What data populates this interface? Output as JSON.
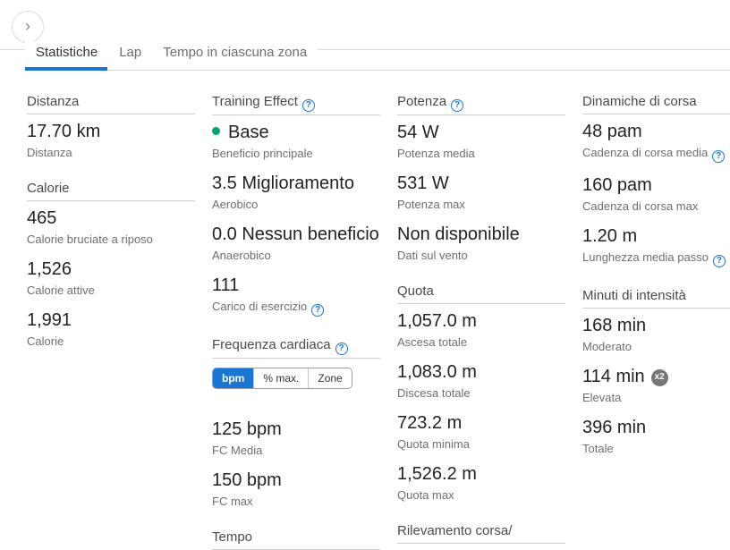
{
  "icons": {
    "expand_glyph": "›",
    "help_glyph": "?"
  },
  "colors": {
    "accent_blue": "#1976d2",
    "teal_dot": "#00a46c",
    "badge_gray": "#767676"
  },
  "tabs": [
    {
      "label": "Statistiche"
    },
    {
      "label": "Lap"
    },
    {
      "label": "Tempo in ciascuna zona"
    }
  ],
  "hr_toggle": {
    "options": [
      {
        "label": "bpm"
      },
      {
        "label": "% max."
      },
      {
        "label": "Zone"
      }
    ]
  },
  "badges": {
    "x2": "x2"
  },
  "columns": [
    {
      "sections": [
        {
          "title": "Distanza",
          "items": [
            {
              "value": "17.70 km",
              "label": "Distanza"
            }
          ]
        },
        {
          "title": "Calorie",
          "items": [
            {
              "value": "465",
              "label": "Calorie bruciate a riposo"
            },
            {
              "value": "1,526",
              "label": "Calorie attive"
            },
            {
              "value": "1,991",
              "label": "Calorie"
            }
          ]
        }
      ]
    },
    {
      "sections": [
        {
          "title": "Training Effect",
          "items": [
            {
              "value": "Base",
              "label": "Beneficio principale"
            },
            {
              "value": "3.5 Miglioramento",
              "label": "Aerobico"
            },
            {
              "value": "0.0 Nessun beneficio",
              "label": "Anaerobico"
            },
            {
              "value": "111",
              "label": "Carico di esercizio"
            }
          ]
        },
        {
          "title": "Frequenza cardiaca",
          "items": [
            {
              "value": "125 bpm",
              "label": "FC Media"
            },
            {
              "value": "150 bpm",
              "label": "FC max"
            }
          ]
        },
        {
          "title": "Tempo",
          "items": []
        }
      ]
    },
    {
      "sections": [
        {
          "title": "Potenza",
          "items": [
            {
              "value": "54 W",
              "label": "Potenza media"
            },
            {
              "value": "531 W",
              "label": "Potenza max"
            },
            {
              "value": "Non disponibile",
              "label": "Dati sul vento"
            }
          ]
        },
        {
          "title": "Quota",
          "items": [
            {
              "value": "1,057.0 m",
              "label": "Ascesa totale"
            },
            {
              "value": "1,083.0 m",
              "label": "Discesa totale"
            },
            {
              "value": "723.2 m",
              "label": "Quota minima"
            },
            {
              "value": "1,526.2 m",
              "label": "Quota max"
            }
          ]
        },
        {
          "title": "Rilevamento corsa/",
          "items": []
        }
      ]
    },
    {
      "sections": [
        {
          "title": "Dinamiche di corsa",
          "items": [
            {
              "value": "48 pam",
              "label": "Cadenza di corsa media"
            },
            {
              "value": "160 pam",
              "label": "Cadenza di corsa max"
            },
            {
              "value": "1.20 m",
              "label": "Lunghezza media passo"
            }
          ]
        },
        {
          "title": "Minuti di intensità",
          "items": [
            {
              "value": "168 min",
              "label": "Moderato"
            },
            {
              "value": "114 min",
              "label": "Elevata"
            },
            {
              "value": "396 min",
              "label": "Totale"
            }
          ]
        }
      ]
    }
  ]
}
